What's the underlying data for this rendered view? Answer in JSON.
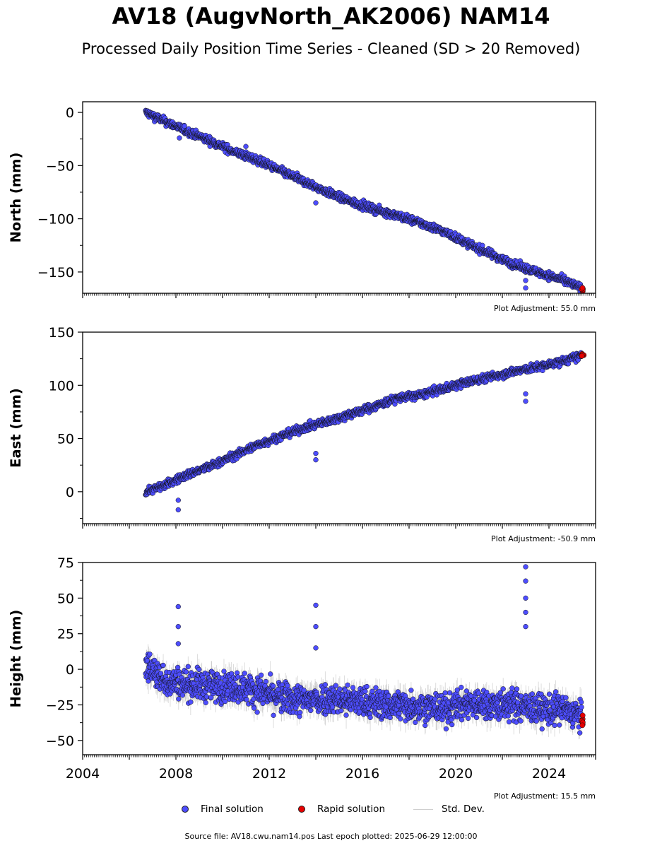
{
  "header": {
    "title": "AV18 (AugvNorth_AK2006) NAM14",
    "subtitle": "Processed Daily Position Time Series - Cleaned (SD > 20 Removed)"
  },
  "legend": {
    "final": "Final solution",
    "rapid": "Rapid solution",
    "stddev": "Std. Dev."
  },
  "footer": {
    "source": "Source file: AV18.cwu.nam14.pos  Last epoch plotted: 2025-06-29 12:00:00"
  },
  "colors": {
    "final": "#4d4dff",
    "rapid": "#e60000",
    "stddev": "#b0b0b0",
    "edge": "#111111"
  },
  "chart_data": [
    {
      "type": "scatter",
      "ylabel": "North (mm)",
      "xlim": [
        2004,
        2026
      ],
      "ylim": [
        -170,
        10
      ],
      "yticks": [
        0,
        -50,
        -100,
        -150
      ],
      "xticks": [
        2004,
        2008,
        2012,
        2016,
        2020,
        2024
      ],
      "adjustment": "Plot Adjustment: 55.0 mm",
      "series": [
        {
          "name": "Final solution",
          "x": [
            2006.7,
            2007.5,
            2008.5,
            2009.5,
            2010.5,
            2011.5,
            2012.5,
            2013.5,
            2014.5,
            2015.5,
            2016.5,
            2017.5,
            2018.5,
            2019.5,
            2020.5,
            2021.5,
            2022.5,
            2023.5,
            2024.5,
            2025.4
          ],
          "y": [
            0,
            -8,
            -18,
            -27,
            -37,
            -45,
            -55,
            -65,
            -75,
            -84,
            -91,
            -97,
            -104,
            -112,
            -123,
            -133,
            -143,
            -150,
            -157,
            -165
          ]
        },
        {
          "name": "Rapid solution",
          "x": [
            2025.45
          ],
          "y": [
            -166
          ]
        }
      ],
      "outliers": [
        {
          "x": 2008.15,
          "y": -24
        },
        {
          "x": 2011.0,
          "y": -32
        },
        {
          "x": 2014.0,
          "y": -85
        },
        {
          "x": 2023.0,
          "y": -165
        },
        {
          "x": 2023.0,
          "y": -158
        }
      ]
    },
    {
      "type": "scatter",
      "ylabel": "East (mm)",
      "xlim": [
        2004,
        2026
      ],
      "ylim": [
        -30,
        150
      ],
      "yticks": [
        0,
        50,
        100,
        150
      ],
      "xticks": [
        2004,
        2008,
        2012,
        2016,
        2020,
        2024
      ],
      "adjustment": "Plot Adjustment: -50.9 mm",
      "series": [
        {
          "name": "Final solution",
          "x": [
            2006.7,
            2007.5,
            2008.5,
            2009.5,
            2010.5,
            2011.5,
            2012.5,
            2013.5,
            2014.5,
            2015.5,
            2016.5,
            2017.5,
            2018.5,
            2019.5,
            2020.5,
            2021.5,
            2022.5,
            2023.5,
            2024.5,
            2025.4
          ],
          "y": [
            0,
            6,
            16,
            24,
            34,
            44,
            52,
            60,
            66,
            73,
            80,
            88,
            91,
            97,
            103,
            108,
            113,
            117,
            122,
            128
          ]
        },
        {
          "name": "Rapid solution",
          "x": [
            2025.45
          ],
          "y": [
            129
          ]
        }
      ],
      "outliers": [
        {
          "x": 2008.1,
          "y": -17
        },
        {
          "x": 2008.1,
          "y": -8
        },
        {
          "x": 2014.0,
          "y": 30
        },
        {
          "x": 2014.0,
          "y": 36
        },
        {
          "x": 2023.0,
          "y": 85
        },
        {
          "x": 2023.0,
          "y": 92
        }
      ]
    },
    {
      "type": "scatter",
      "ylabel": "Height (mm)",
      "xlim": [
        2004,
        2026
      ],
      "ylim": [
        -60,
        75
      ],
      "yticks": [
        75,
        50,
        25,
        0,
        -25,
        -50
      ],
      "xticks": [
        2004,
        2008,
        2012,
        2016,
        2020,
        2024
      ],
      "adjustment": "Plot Adjustment: 15.5 mm",
      "series": [
        {
          "name": "Final solution",
          "x": [
            2006.7,
            2007.5,
            2008.5,
            2009.5,
            2010.5,
            2011.5,
            2012.5,
            2013.5,
            2014.5,
            2015.5,
            2016.5,
            2017.5,
            2018.5,
            2019.5,
            2020.5,
            2021.5,
            2022.5,
            2023.5,
            2024.5,
            2025.4
          ],
          "y": [
            3,
            -8,
            -10,
            -12,
            -12,
            -15,
            -20,
            -22,
            -20,
            -22,
            -24,
            -25,
            -26,
            -28,
            -24,
            -25,
            -25,
            -28,
            -28,
            -33
          ]
        },
        {
          "name": "Rapid solution",
          "x": [
            2025.45
          ],
          "y": [
            -37
          ]
        }
      ],
      "outliers": [
        {
          "x": 2008.1,
          "y": 44
        },
        {
          "x": 2008.1,
          "y": 30
        },
        {
          "x": 2008.1,
          "y": 18
        },
        {
          "x": 2014.0,
          "y": 45
        },
        {
          "x": 2014.0,
          "y": 30
        },
        {
          "x": 2014.0,
          "y": 15
        },
        {
          "x": 2023.0,
          "y": 72
        },
        {
          "x": 2023.0,
          "y": 62
        },
        {
          "x": 2023.0,
          "y": 50
        },
        {
          "x": 2023.0,
          "y": 40
        },
        {
          "x": 2023.0,
          "y": 30
        }
      ]
    }
  ]
}
